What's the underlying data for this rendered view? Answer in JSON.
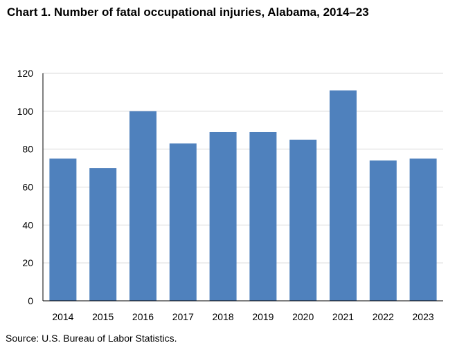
{
  "colors": {
    "bar": "#4f81bd",
    "grid": "#d9d9d9",
    "axis": "#000000"
  },
  "chart_data": {
    "type": "bar",
    "title": "Chart 1. Number of fatal occupational injuries, Alabama, 2014–23",
    "categories": [
      "2014",
      "2015",
      "2016",
      "2017",
      "2018",
      "2019",
      "2020",
      "2021",
      "2022",
      "2023"
    ],
    "values": [
      75,
      70,
      100,
      83,
      89,
      89,
      85,
      111,
      74,
      75
    ],
    "ylim": [
      0,
      120
    ],
    "yticks": [
      "0",
      "20",
      "40",
      "60",
      "80",
      "100",
      "120"
    ],
    "grid": true,
    "xlabel": "",
    "ylabel": ""
  },
  "source": "Source: U.S. Bureau of Labor Statistics."
}
